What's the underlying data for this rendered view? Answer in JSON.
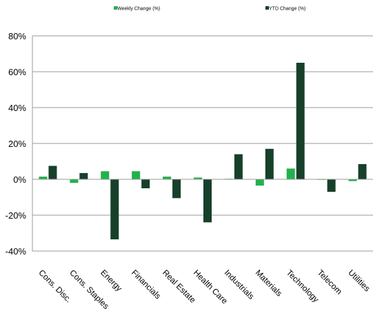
{
  "chart_data": {
    "type": "bar",
    "categories": [
      "Cons. Disc.",
      "Cons. Staples",
      "Energy",
      "Financials",
      "Real Estate",
      "Health Care",
      "Industrials",
      "Materials",
      "Technology",
      "Telecom",
      "Utilities"
    ],
    "series": [
      {
        "name": "Weekly Change (%)",
        "color": "#22b14c",
        "values": [
          1.5,
          -2,
          4.5,
          4.5,
          1.5,
          1,
          0.3,
          -3.5,
          6,
          -0.3,
          -1
        ]
      },
      {
        "name": "YTD Change (%)",
        "color": "#17402a",
        "values": [
          7.5,
          3.5,
          -33.5,
          -5,
          -10.5,
          -24,
          14,
          17,
          65,
          -7,
          8.5
        ]
      }
    ],
    "ylim": [
      -40,
      80
    ],
    "yticks": [
      -40,
      -20,
      0,
      20,
      40,
      60,
      80
    ],
    "ytick_labels": [
      "-40%",
      "-20%",
      "0%",
      "20%",
      "40%",
      "60%",
      "80%"
    ],
    "grid": true,
    "legend_position": "top"
  }
}
